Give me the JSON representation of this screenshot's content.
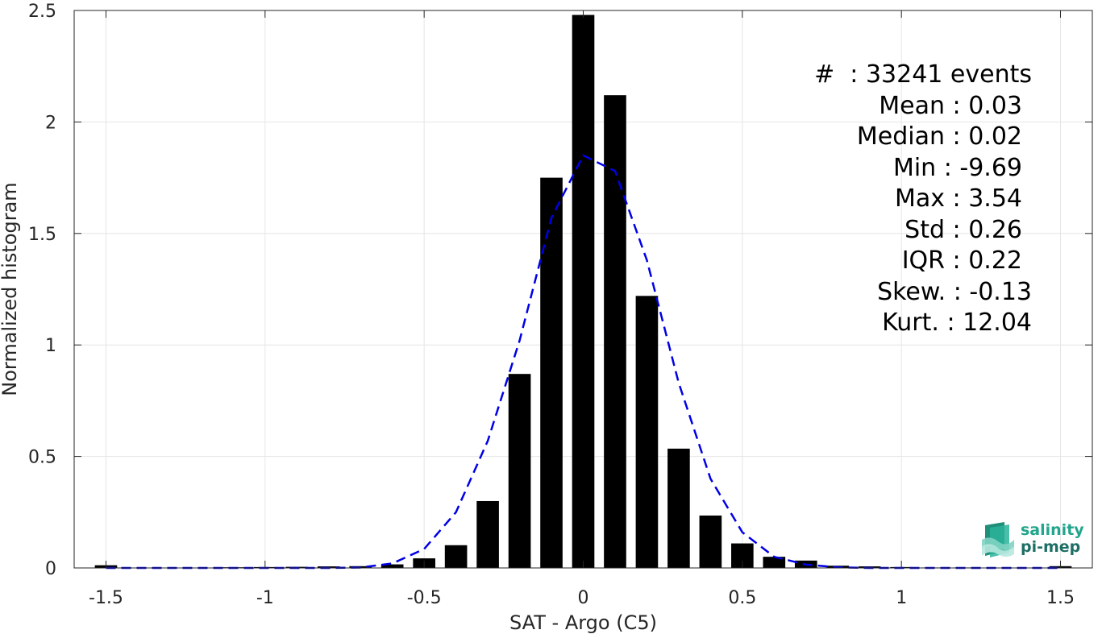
{
  "chart_data": {
    "type": "bar",
    "title": "",
    "xlabel": "SAT - Argo (C5)",
    "ylabel": "Normalized histogram",
    "xlim": [
      -1.6,
      1.6
    ],
    "ylim": [
      0,
      2.5
    ],
    "grid": true,
    "x_ticks": [
      -1.5,
      -1,
      -0.5,
      0,
      0.5,
      1,
      1.5
    ],
    "x_tick_labels": [
      "-1.5",
      "-1",
      "-0.5",
      "0",
      "0.5",
      "1",
      "1.5"
    ],
    "y_ticks": [
      0,
      0.5,
      1,
      1.5,
      2,
      2.5
    ],
    "y_tick_labels": [
      "0",
      "0.5",
      "1",
      "1.5",
      "2",
      "2.5"
    ],
    "bar_width": 0.07,
    "bars": {
      "x": [
        -1.5,
        -1.4,
        -1.3,
        -1.2,
        -1.1,
        -1.0,
        -0.9,
        -0.8,
        -0.7,
        -0.6,
        -0.5,
        -0.4,
        -0.3,
        -0.2,
        -0.1,
        0.0,
        0.1,
        0.2,
        0.3,
        0.4,
        0.5,
        0.6,
        0.7,
        0.8,
        0.9,
        1.0,
        1.1,
        1.2,
        1.3,
        1.4,
        1.5
      ],
      "values": [
        0.012,
        0.0,
        0.0,
        0.0,
        0.003,
        0.004,
        0.005,
        0.007,
        0.008,
        0.016,
        0.043,
        0.102,
        0.3,
        0.87,
        1.75,
        2.48,
        2.12,
        1.22,
        0.535,
        0.235,
        0.11,
        0.05,
        0.033,
        0.01,
        0.007,
        0.004,
        0.002,
        0.002,
        0.001,
        0.001,
        0.008
      ]
    },
    "fit_curve": {
      "style": "dashed",
      "color": "#0000e6",
      "x": [
        -1.5,
        -1.4,
        -1.3,
        -1.2,
        -1.1,
        -1.0,
        -0.9,
        -0.8,
        -0.7,
        -0.6,
        -0.5,
        -0.4,
        -0.3,
        -0.2,
        -0.1,
        0.0,
        0.1,
        0.2,
        0.3,
        0.4,
        0.5,
        0.6,
        0.7,
        0.8,
        0.9,
        1.0,
        1.1,
        1.2,
        1.3,
        1.4,
        1.5
      ],
      "y": [
        0.0,
        0.0,
        0.0,
        0.0,
        0.0,
        0.0,
        0.0,
        0.0,
        0.002,
        0.02,
        0.085,
        0.25,
        0.57,
        1.02,
        1.57,
        1.85,
        1.78,
        1.38,
        0.83,
        0.4,
        0.16,
        0.05,
        0.015,
        0.003,
        0.0,
        0.0,
        0.0,
        0.0,
        0.0,
        0.0,
        0.0
      ]
    }
  },
  "stats": {
    "lines": [
      "#  : 33241 events",
      "Mean : 0.03",
      "Median : 0.02",
      "Min : -9.69",
      "Max : 3.54",
      "Std : 0.26",
      "IQR : 0.22",
      "Skew. : -0.13",
      "Kurt. : 12.04"
    ]
  },
  "logo": {
    "line1": "salinity",
    "line2": "pi-mep"
  }
}
